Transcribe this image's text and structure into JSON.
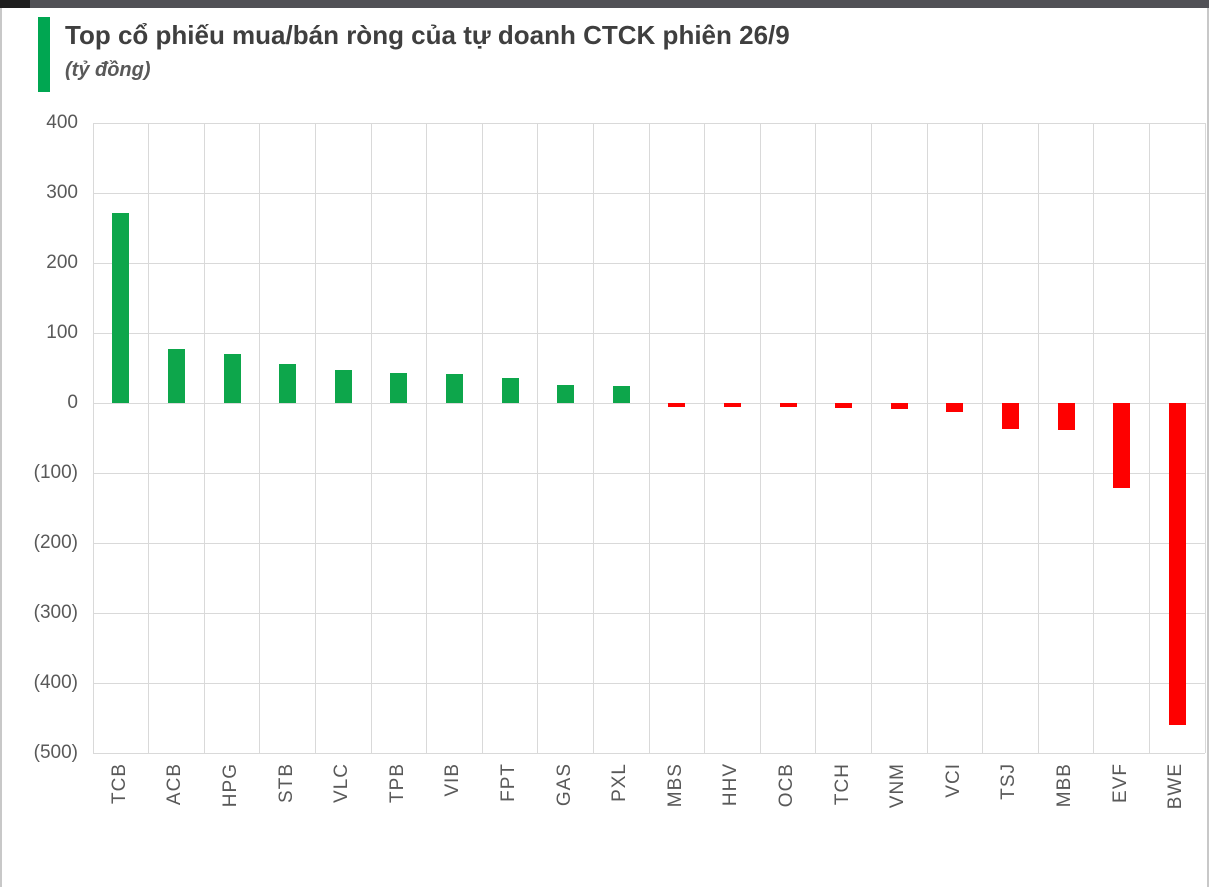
{
  "header": {
    "title": "Top cổ phiếu mua/bán ròng của tự doanh CTCK phiên 26/9",
    "subtitle": "(tỷ đồng)"
  },
  "colors": {
    "accent_bar": "#00A651",
    "positive_bar": "#0DA64B",
    "negative_bar": "#FE0000",
    "gridline": "#D9D9D9",
    "axis_text": "#595959",
    "title_text": "#3F3F3F",
    "subtitle_text": "#595959",
    "top_strip": "#515156",
    "top_strip_left": "#1F1F1F",
    "side_border": "#C8C8C8"
  },
  "chart_data": {
    "type": "bar",
    "title": "Top cổ phiếu mua/bán ròng của tự doanh CTCK phiên 26/9",
    "subtitle": "(tỷ đồng)",
    "ylabel": "tỷ đồng",
    "xlabel": "",
    "categories": [
      "TCB",
      "ACB",
      "HPG",
      "STB",
      "VLC",
      "TPB",
      "VIB",
      "FPT",
      "GAS",
      "PXL",
      "MBS",
      "HHV",
      "OCB",
      "TCH",
      "VNM",
      "VCI",
      "TSJ",
      "MBB",
      "EVF",
      "BWE"
    ],
    "values": [
      271,
      77,
      70,
      56,
      47,
      43,
      42,
      36,
      26,
      24,
      -5,
      -5,
      -6,
      -7,
      -8,
      -13,
      -37,
      -38,
      -121,
      -460
    ],
    "ylim": [
      -500,
      400
    ],
    "ytick_interval": 100,
    "yticks": [
      400,
      300,
      200,
      100,
      0,
      -100,
      -200,
      -300,
      -400,
      -500
    ],
    "ytick_labels": [
      "400",
      "300",
      "200",
      "100",
      "0",
      "(100)",
      "(200)",
      "(300)",
      "(400)",
      "(500)"
    ],
    "grid": true,
    "legend": "none",
    "negative_label_format": "parentheses"
  }
}
